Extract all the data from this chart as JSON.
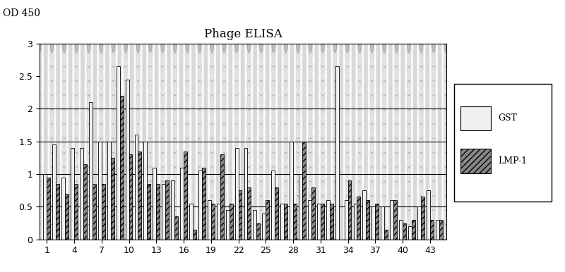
{
  "title": "Phage ELISA",
  "ylabel": "OD 450",
  "xlim_ticks": [
    1,
    4,
    7,
    10,
    13,
    16,
    19,
    22,
    25,
    28,
    31,
    34,
    37,
    40,
    43
  ],
  "ylim": [
    0,
    3
  ],
  "yticks": [
    0,
    0.5,
    1,
    1.5,
    2,
    2.5,
    3
  ],
  "hlines": [
    0.5,
    1.0,
    1.5,
    2.0
  ],
  "legend_labels": [
    "GST",
    "LMP-1"
  ],
  "gst_color": "#f0f0f0",
  "lmp_color": "#888888",
  "bar_width": 0.38,
  "gst_values": [
    1.0,
    1.45,
    0.95,
    1.4,
    1.4,
    2.1,
    1.5,
    1.5,
    2.65,
    2.45,
    1.6,
    1.5,
    1.1,
    0.85,
    0.9,
    1.1,
    0.55,
    1.05,
    0.6,
    0.55,
    0.45,
    1.4,
    1.4,
    0.45,
    0.4,
    1.05,
    0.55,
    1.5,
    1.0,
    0.6,
    0.55,
    0.6,
    2.65,
    0.6,
    0.55,
    0.75,
    0.5,
    0.5,
    0.6,
    0.3,
    0.2,
    0.5,
    0.75,
    0.3
  ],
  "lmp_values": [
    0.95,
    0.85,
    0.7,
    0.85,
    1.15,
    0.85,
    0.85,
    1.25,
    2.2,
    1.3,
    1.35,
    0.85,
    0.85,
    0.9,
    0.35,
    1.35,
    0.15,
    1.1,
    0.55,
    1.3,
    0.55,
    0.75,
    0.8,
    0.25,
    0.6,
    0.8,
    0.55,
    0.55,
    1.5,
    0.8,
    0.55,
    0.55,
    0.0,
    0.9,
    0.65,
    0.6,
    0.55,
    0.15,
    0.6,
    0.25,
    0.3,
    0.65,
    0.3,
    0.3
  ],
  "fig_width": 8.0,
  "fig_height": 3.86,
  "bg_dot_color": "#b0b0b0",
  "bg_base_color": "#d8d8d8"
}
